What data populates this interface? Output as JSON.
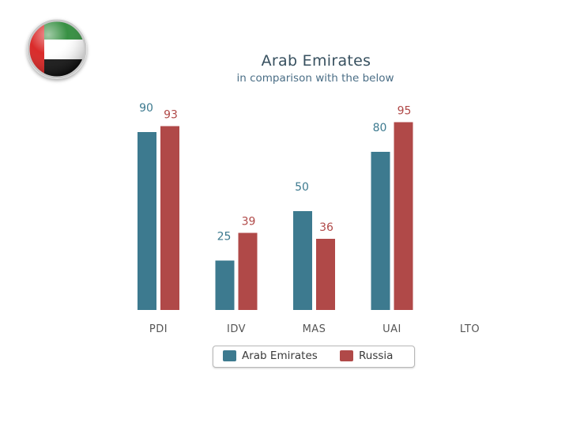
{
  "colors": {
    "series_1": "#3d7a8f",
    "series_2": "#b04948"
  },
  "flag": {
    "icon": "uae-flag-icon"
  },
  "chart_data": {
    "type": "bar",
    "title": "Arab Emirates",
    "subtitle": "in comparison with the below",
    "categories": [
      "PDI",
      "IDV",
      "MAS",
      "UAI",
      "LTO"
    ],
    "series": [
      {
        "name": "Arab Emirates",
        "values": [
          90,
          25,
          50,
          80,
          null
        ]
      },
      {
        "name": "Russia",
        "values": [
          93,
          39,
          36,
          95,
          null
        ]
      }
    ],
    "ylim": [
      0,
      100
    ],
    "grid": false,
    "legend_position": "bottom"
  }
}
